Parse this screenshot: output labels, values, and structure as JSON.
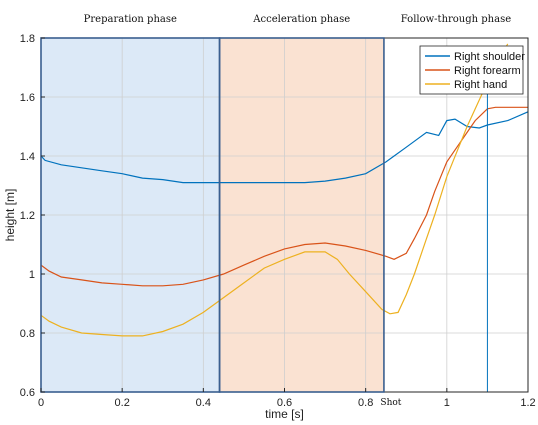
{
  "chart_data": {
    "type": "line",
    "xlabel": "time [s]",
    "ylabel": "height [m]",
    "xlim": [
      0,
      1.2
    ],
    "ylim": [
      0.6,
      1.8
    ],
    "xticks": [
      "0",
      "0.2",
      "0.4",
      "0.6",
      "0.8",
      "1",
      "1.2"
    ],
    "xtick_values": [
      0,
      0.2,
      0.4,
      0.6,
      0.8,
      1.0,
      1.2
    ],
    "yticks": [
      "0.6",
      "0.8",
      "1",
      "1.2",
      "1.4",
      "1.6",
      "1.8"
    ],
    "ytick_values": [
      0.6,
      0.8,
      1.0,
      1.2,
      1.4,
      1.6,
      1.8
    ],
    "grid": true,
    "legend_position": "top-right",
    "phases": [
      {
        "label": "Preparation phase",
        "x_start": 0,
        "x_end": 0.44,
        "color": "#dce9f7"
      },
      {
        "label": "Acceleration phase",
        "x_start": 0.44,
        "x_end": 0.845,
        "color": "#fae2d2"
      },
      {
        "label": "Follow-through phase",
        "x_start": 0.845,
        "x_end": 1.2,
        "color": null
      }
    ],
    "shot": {
      "label": "Shot",
      "x": 0.845
    },
    "vertical_marker_x": 1.1,
    "series": [
      {
        "name": "Right shoulder",
        "color": "#0072BD",
        "x": [
          0,
          0.01,
          0.05,
          0.1,
          0.15,
          0.2,
          0.25,
          0.3,
          0.35,
          0.4,
          0.45,
          0.5,
          0.55,
          0.6,
          0.65,
          0.7,
          0.75,
          0.8,
          0.85,
          0.87,
          0.9,
          0.93,
          0.95,
          0.98,
          1.0,
          1.02,
          1.05,
          1.08,
          1.1,
          1.15,
          1.2
        ],
        "y": [
          1.4,
          1.385,
          1.37,
          1.36,
          1.35,
          1.34,
          1.325,
          1.32,
          1.31,
          1.31,
          1.31,
          1.31,
          1.31,
          1.31,
          1.31,
          1.315,
          1.325,
          1.34,
          1.38,
          1.4,
          1.43,
          1.46,
          1.48,
          1.47,
          1.52,
          1.525,
          1.5,
          1.495,
          1.505,
          1.52,
          1.55
        ]
      },
      {
        "name": "Right forearm",
        "color": "#D95319",
        "x": [
          0,
          0.02,
          0.05,
          0.1,
          0.15,
          0.2,
          0.25,
          0.3,
          0.35,
          0.4,
          0.45,
          0.5,
          0.55,
          0.6,
          0.65,
          0.7,
          0.75,
          0.8,
          0.85,
          0.87,
          0.9,
          0.92,
          0.95,
          0.97,
          1.0,
          1.03,
          1.05,
          1.07,
          1.1,
          1.12,
          1.15,
          1.2
        ],
        "y": [
          1.03,
          1.01,
          0.99,
          0.98,
          0.97,
          0.965,
          0.96,
          0.96,
          0.965,
          0.98,
          1.0,
          1.03,
          1.06,
          1.085,
          1.1,
          1.105,
          1.095,
          1.08,
          1.06,
          1.05,
          1.07,
          1.12,
          1.2,
          1.28,
          1.38,
          1.44,
          1.48,
          1.52,
          1.56,
          1.565,
          1.565,
          1.565
        ]
      },
      {
        "name": "Right hand",
        "color": "#EDB120",
        "x": [
          0,
          0.02,
          0.05,
          0.1,
          0.15,
          0.2,
          0.25,
          0.3,
          0.35,
          0.4,
          0.45,
          0.5,
          0.55,
          0.6,
          0.65,
          0.7,
          0.73,
          0.76,
          0.8,
          0.84,
          0.86,
          0.88,
          0.9,
          0.92,
          0.95,
          0.97,
          1.0,
          1.05,
          1.1,
          1.15
        ],
        "y": [
          0.86,
          0.84,
          0.82,
          0.8,
          0.795,
          0.79,
          0.79,
          0.805,
          0.83,
          0.87,
          0.92,
          0.97,
          1.02,
          1.05,
          1.075,
          1.075,
          1.05,
          1.0,
          0.94,
          0.88,
          0.865,
          0.87,
          0.93,
          1.0,
          1.12,
          1.2,
          1.33,
          1.5,
          1.65,
          1.78
        ]
      }
    ]
  }
}
